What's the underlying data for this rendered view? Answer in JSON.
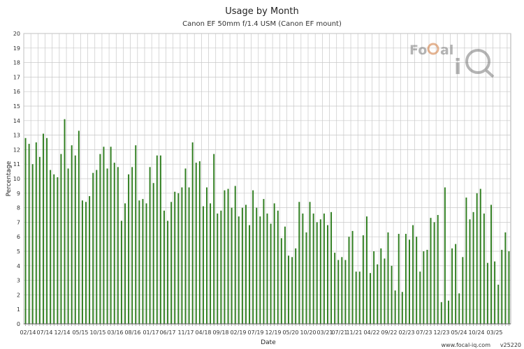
{
  "chart_data": {
    "type": "bar",
    "title": "Usage by Month",
    "subtitle": "Canon EF 50mm f/1.4 USM (Canon EF mount)",
    "xlabel": "Date",
    "ylabel": "Percentage",
    "ylim": [
      0,
      20
    ],
    "yticks": [
      0,
      1,
      2,
      3,
      4,
      5,
      6,
      7,
      8,
      9,
      10,
      11,
      12,
      13,
      14,
      15,
      16,
      17,
      18,
      19,
      20
    ],
    "grid": true,
    "bar_color": "#2e7d1e",
    "start_month": "02/14",
    "xtick_labels": [
      "02/14",
      "07/14",
      "12/14",
      "05/15",
      "10/15",
      "03/16",
      "08/16",
      "01/17",
      "06/17",
      "11/17",
      "04/18",
      "09/18",
      "02/19",
      "07/19",
      "12/19",
      "05/20",
      "10/20",
      "03/21",
      "07/21",
      "11/21",
      "04/22",
      "09/22",
      "02/23",
      "07/23",
      "12/23",
      "05/24",
      "10/24",
      "03/25"
    ],
    "values": [
      12.8,
      12.4,
      11.0,
      12.5,
      11.5,
      13.1,
      12.8,
      10.6,
      10.3,
      10.1,
      11.7,
      14.1,
      10.7,
      12.3,
      11.6,
      13.3,
      8.5,
      8.4,
      8.8,
      10.4,
      10.6,
      11.7,
      12.2,
      10.7,
      12.2,
      11.1,
      10.8,
      7.1,
      8.3,
      10.3,
      10.8,
      12.3,
      8.5,
      8.6,
      8.3,
      10.8,
      9.7,
      11.6,
      11.6,
      7.8,
      7.1,
      8.4,
      9.1,
      9.0,
      9.4,
      10.7,
      9.4,
      12.5,
      11.1,
      11.2,
      8.1,
      9.4,
      8.3,
      11.7,
      7.6,
      7.8,
      9.2,
      9.3,
      8.0,
      9.5,
      7.4,
      8.0,
      8.2,
      6.8,
      9.2,
      8.0,
      7.4,
      8.6,
      7.6,
      6.9,
      8.3,
      7.8,
      5.9,
      6.7,
      4.7,
      4.6,
      5.2,
      8.4,
      7.6,
      6.3,
      8.4,
      7.6,
      7.0,
      7.2,
      7.6,
      6.8,
      7.7,
      4.9,
      4.4,
      4.6,
      4.4,
      6.0,
      6.4,
      3.6,
      3.6,
      6.1,
      7.4,
      3.5,
      5.0,
      4.1,
      5.2,
      4.5,
      6.3,
      4.0,
      2.3,
      6.2,
      2.2,
      6.2,
      5.8,
      6.8,
      6.0,
      3.6,
      5.0,
      5.1,
      7.3,
      7.0,
      7.5,
      1.5,
      9.4,
      1.6,
      5.2,
      5.5,
      2.1,
      4.6,
      8.7,
      7.2,
      7.7,
      9.0,
      9.3,
      7.6,
      4.2,
      8.2,
      4.3,
      2.7,
      5.1,
      6.3,
      5.0
    ]
  },
  "footer": {
    "website": "www.focal-iq.com",
    "version": "v25220"
  },
  "logo": {
    "text": "FoCal iQ"
  }
}
